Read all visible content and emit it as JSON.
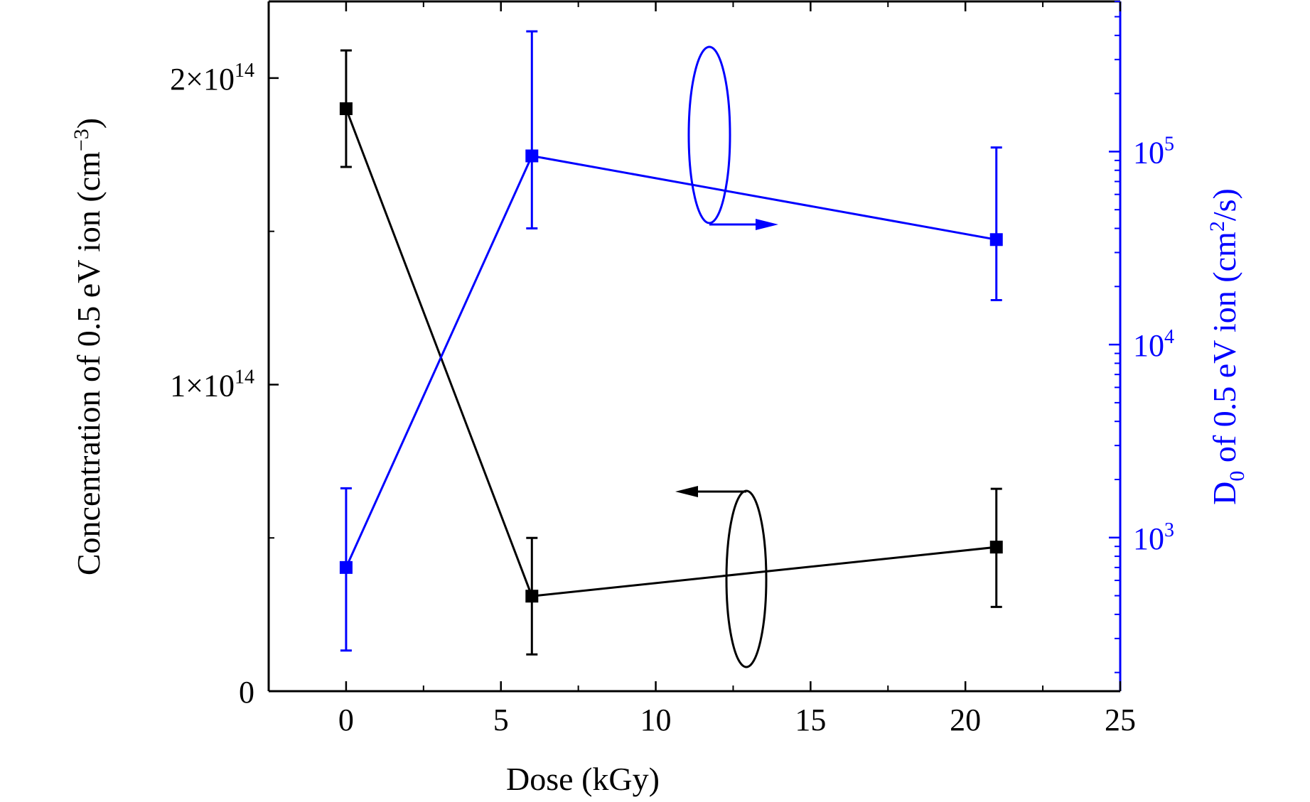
{
  "chart_data": {
    "type": "line",
    "xlabel": "Dose (kGy)",
    "xlim": [
      -2.5,
      25
    ],
    "xticks": [
      "0",
      "5",
      "10",
      "15",
      "20",
      "25"
    ],
    "grid": false,
    "y_left": {
      "label_main": "Concentration of 0.5 eV ion (cm",
      "label_sup": "−3",
      "label_end": ")",
      "scale": "linear",
      "ylim": [
        0,
        225000000000000.0
      ],
      "ticks": [
        {
          "value": 0,
          "label": "0",
          "exp": ""
        },
        {
          "value": 100000000000000.0,
          "label": "1×10",
          "exp": "14"
        },
        {
          "value": 200000000000000.0,
          "label": "2×10",
          "exp": "14"
        }
      ],
      "color": "#000000"
    },
    "y_right": {
      "label_main": "D",
      "label_sub": "0",
      "label_mid": " of 0.5 eV ion (cm",
      "label_sup": "2",
      "label_end": "/s)",
      "scale": "log",
      "ylim": [
        160,
        600000
      ],
      "ticks": [
        {
          "value": 1000,
          "label": "10",
          "exp": "3"
        },
        {
          "value": 10000,
          "label": "10",
          "exp": "4"
        },
        {
          "value": 100000,
          "label": "10",
          "exp": "5"
        }
      ],
      "color": "#0000ff"
    },
    "series": [
      {
        "axis": "left",
        "color": "#000000",
        "x": [
          0,
          6,
          21
        ],
        "y": [
          190000000000000.0,
          31000000000000.0,
          47000000000000.0
        ],
        "err_low": [
          171000000000000.0,
          12000000000000.0,
          27500000000000.0
        ],
        "err_high": [
          209000000000000.0,
          50000000000000.0,
          66000000000000.0
        ]
      },
      {
        "axis": "right",
        "color": "#0000ff",
        "x": [
          0,
          6,
          21
        ],
        "y": [
          700,
          95000,
          35000
        ],
        "err_low": [
          260,
          40000,
          17000
        ],
        "err_high": [
          1800,
          420000,
          105000
        ]
      }
    ]
  }
}
